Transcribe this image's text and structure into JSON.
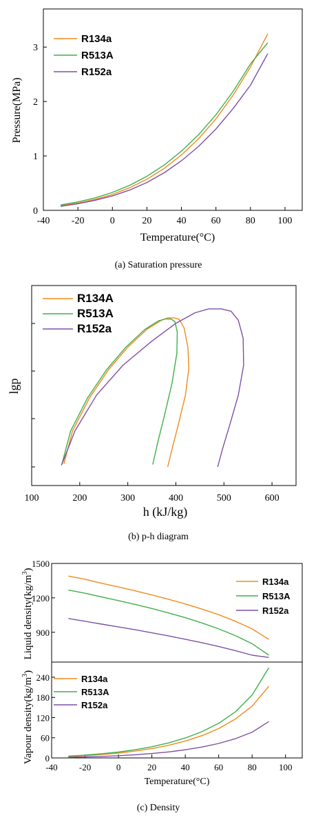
{
  "colors": {
    "R134a": "#f08a1c",
    "R513A": "#3fae49",
    "R152a": "#7d4fa6"
  },
  "captions": {
    "a": "(a) Saturation pressure",
    "b": "(b) p-h diagram",
    "c": "(c) Density"
  },
  "chart_data": [
    {
      "id": "a",
      "type": "line",
      "xlabel": "Temperature(°C)",
      "ylabel": "Pressure(MPa)",
      "xlim": [
        -40,
        110
      ],
      "ylim": [
        0,
        3.7
      ],
      "xticks": [
        "-40",
        "-20",
        "0",
        "20",
        "40",
        "60",
        "80",
        "100"
      ],
      "yticks": [
        "0",
        "1",
        "2",
        "3"
      ],
      "legend_position": "top-left",
      "x": [
        -30,
        -20,
        -10,
        0,
        10,
        20,
        30,
        40,
        50,
        60,
        70,
        80,
        90
      ],
      "series": [
        {
          "name": "R134a",
          "values": [
            0.085,
            0.133,
            0.201,
            0.293,
            0.415,
            0.572,
            0.77,
            1.017,
            1.318,
            1.682,
            2.117,
            2.633,
            3.244
          ]
        },
        {
          "name": "R513A",
          "values": [
            0.1,
            0.154,
            0.229,
            0.329,
            0.46,
            0.626,
            0.833,
            1.087,
            1.392,
            1.756,
            2.186,
            2.69,
            3.08
          ]
        },
        {
          "name": "R152a",
          "values": [
            0.074,
            0.122,
            0.185,
            0.265,
            0.372,
            0.512,
            0.69,
            0.911,
            1.177,
            1.495,
            1.872,
            2.3,
            2.88
          ]
        }
      ]
    },
    {
      "id": "b",
      "type": "line",
      "xlabel": "h (kJ/kg)",
      "ylabel": "lgp",
      "xlim": [
        100,
        650
      ],
      "xticks": [
        "100",
        "200",
        "300",
        "400",
        "500",
        "600"
      ],
      "legend_position": "top-left",
      "series": [
        {
          "name": "R134A",
          "points": [
            [
              167,
              1.0
            ],
            [
              185,
              12.0
            ],
            [
              220,
              23.0
            ],
            [
              260,
              32.5
            ],
            [
              300,
              40.0
            ],
            [
              340,
              46.0
            ],
            [
              370,
              49.0
            ],
            [
              383,
              49.8
            ],
            [
              397,
              49.8
            ],
            [
              407,
              49.3
            ],
            [
              417,
              46.5
            ],
            [
              425,
              40.0
            ],
            [
              427,
              33.0
            ],
            [
              420,
              24.0
            ],
            [
              405,
              14.0
            ],
            [
              392,
              6.0
            ],
            [
              383,
              0.0
            ]
          ]
        },
        {
          "name": "R513A",
          "points": [
            [
              163,
              1.0
            ],
            [
              181,
              12.0
            ],
            [
              216,
              23.0
            ],
            [
              256,
              32.5
            ],
            [
              296,
              40.0
            ],
            [
              336,
              46.0
            ],
            [
              364,
              48.8
            ],
            [
              378,
              49.4
            ],
            [
              390,
              49.4
            ],
            [
              398,
              48.5
            ],
            [
              403,
              45.0
            ],
            [
              402,
              38.0
            ],
            [
              392,
              28.0
            ],
            [
              376,
              17.0
            ],
            [
              362,
              8.0
            ],
            [
              352,
              0.8
            ]
          ]
        },
        {
          "name": "R152a",
          "points": [
            [
              162,
              0.5
            ],
            [
              190,
              12.0
            ],
            [
              235,
              24.0
            ],
            [
              290,
              34.0
            ],
            [
              350,
              42.0
            ],
            [
              400,
              48.0
            ],
            [
              440,
              51.5
            ],
            [
              468,
              52.8
            ],
            [
              495,
              52.8
            ],
            [
              515,
              52.0
            ],
            [
              530,
              49.0
            ],
            [
              540,
              43.0
            ],
            [
              541,
              34.0
            ],
            [
              530,
              24.0
            ],
            [
              512,
              14.0
            ],
            [
              497,
              6.0
            ],
            [
              487,
              0.0
            ]
          ]
        }
      ]
    },
    {
      "id": "c-top",
      "type": "line",
      "ylabel": "Liquid density(kg/m³)",
      "xlim": [
        -40,
        110
      ],
      "ylim": [
        640,
        1500
      ],
      "yticks": [
        "900",
        "1200",
        "1500"
      ],
      "legend_position": "top-right",
      "x": [
        -30,
        -20,
        -10,
        0,
        10,
        20,
        30,
        40,
        50,
        60,
        70,
        80,
        90
      ],
      "series": [
        {
          "name": "R134a",
          "values": [
            1390,
            1362,
            1327,
            1295,
            1261,
            1225,
            1188,
            1147,
            1102,
            1053,
            996,
            929,
            838
          ]
        },
        {
          "name": "R513A",
          "values": [
            1268,
            1240,
            1208,
            1176,
            1143,
            1107,
            1068,
            1027,
            981,
            929,
            871,
            800,
            700
          ]
        },
        {
          "name": "R152a",
          "values": [
            1020,
            996,
            971,
            946,
            922,
            895,
            868,
            839,
            809,
            776,
            740,
            700,
            680
          ]
        }
      ]
    },
    {
      "id": "c-bottom",
      "type": "line",
      "xlabel": "Temperature(°C)",
      "ylabel": "Vapour density(kg/m³)",
      "xlim": [
        -40,
        110
      ],
      "ylim": [
        0,
        285
      ],
      "xticks": [
        "-40",
        "-20",
        "0",
        "20",
        "40",
        "60",
        "80",
        "100"
      ],
      "yticks": [
        "0",
        "60",
        "120",
        "180",
        "240"
      ],
      "legend_position": "top-left",
      "x": [
        -30,
        -20,
        -10,
        0,
        10,
        20,
        30,
        40,
        50,
        60,
        70,
        80,
        90
      ],
      "series": [
        {
          "name": "R134a",
          "values": [
            4.4,
            6.8,
            10.0,
            14.4,
            20.2,
            27.8,
            37.5,
            50.1,
            66.3,
            87.4,
            115.6,
            154.0,
            213.0
          ]
        },
        {
          "name": "R513A",
          "values": [
            5.5,
            8.4,
            12.3,
            17.5,
            24.3,
            33.2,
            44.6,
            59.2,
            78.2,
            103.0,
            137.0,
            187.0,
            268.0
          ]
        },
        {
          "name": "R152a",
          "values": [
            1.9,
            3.0,
            4.5,
            6.6,
            9.4,
            13.1,
            17.9,
            24.2,
            32.4,
            43.0,
            57.3,
            76.7,
            108.0
          ]
        }
      ]
    }
  ]
}
